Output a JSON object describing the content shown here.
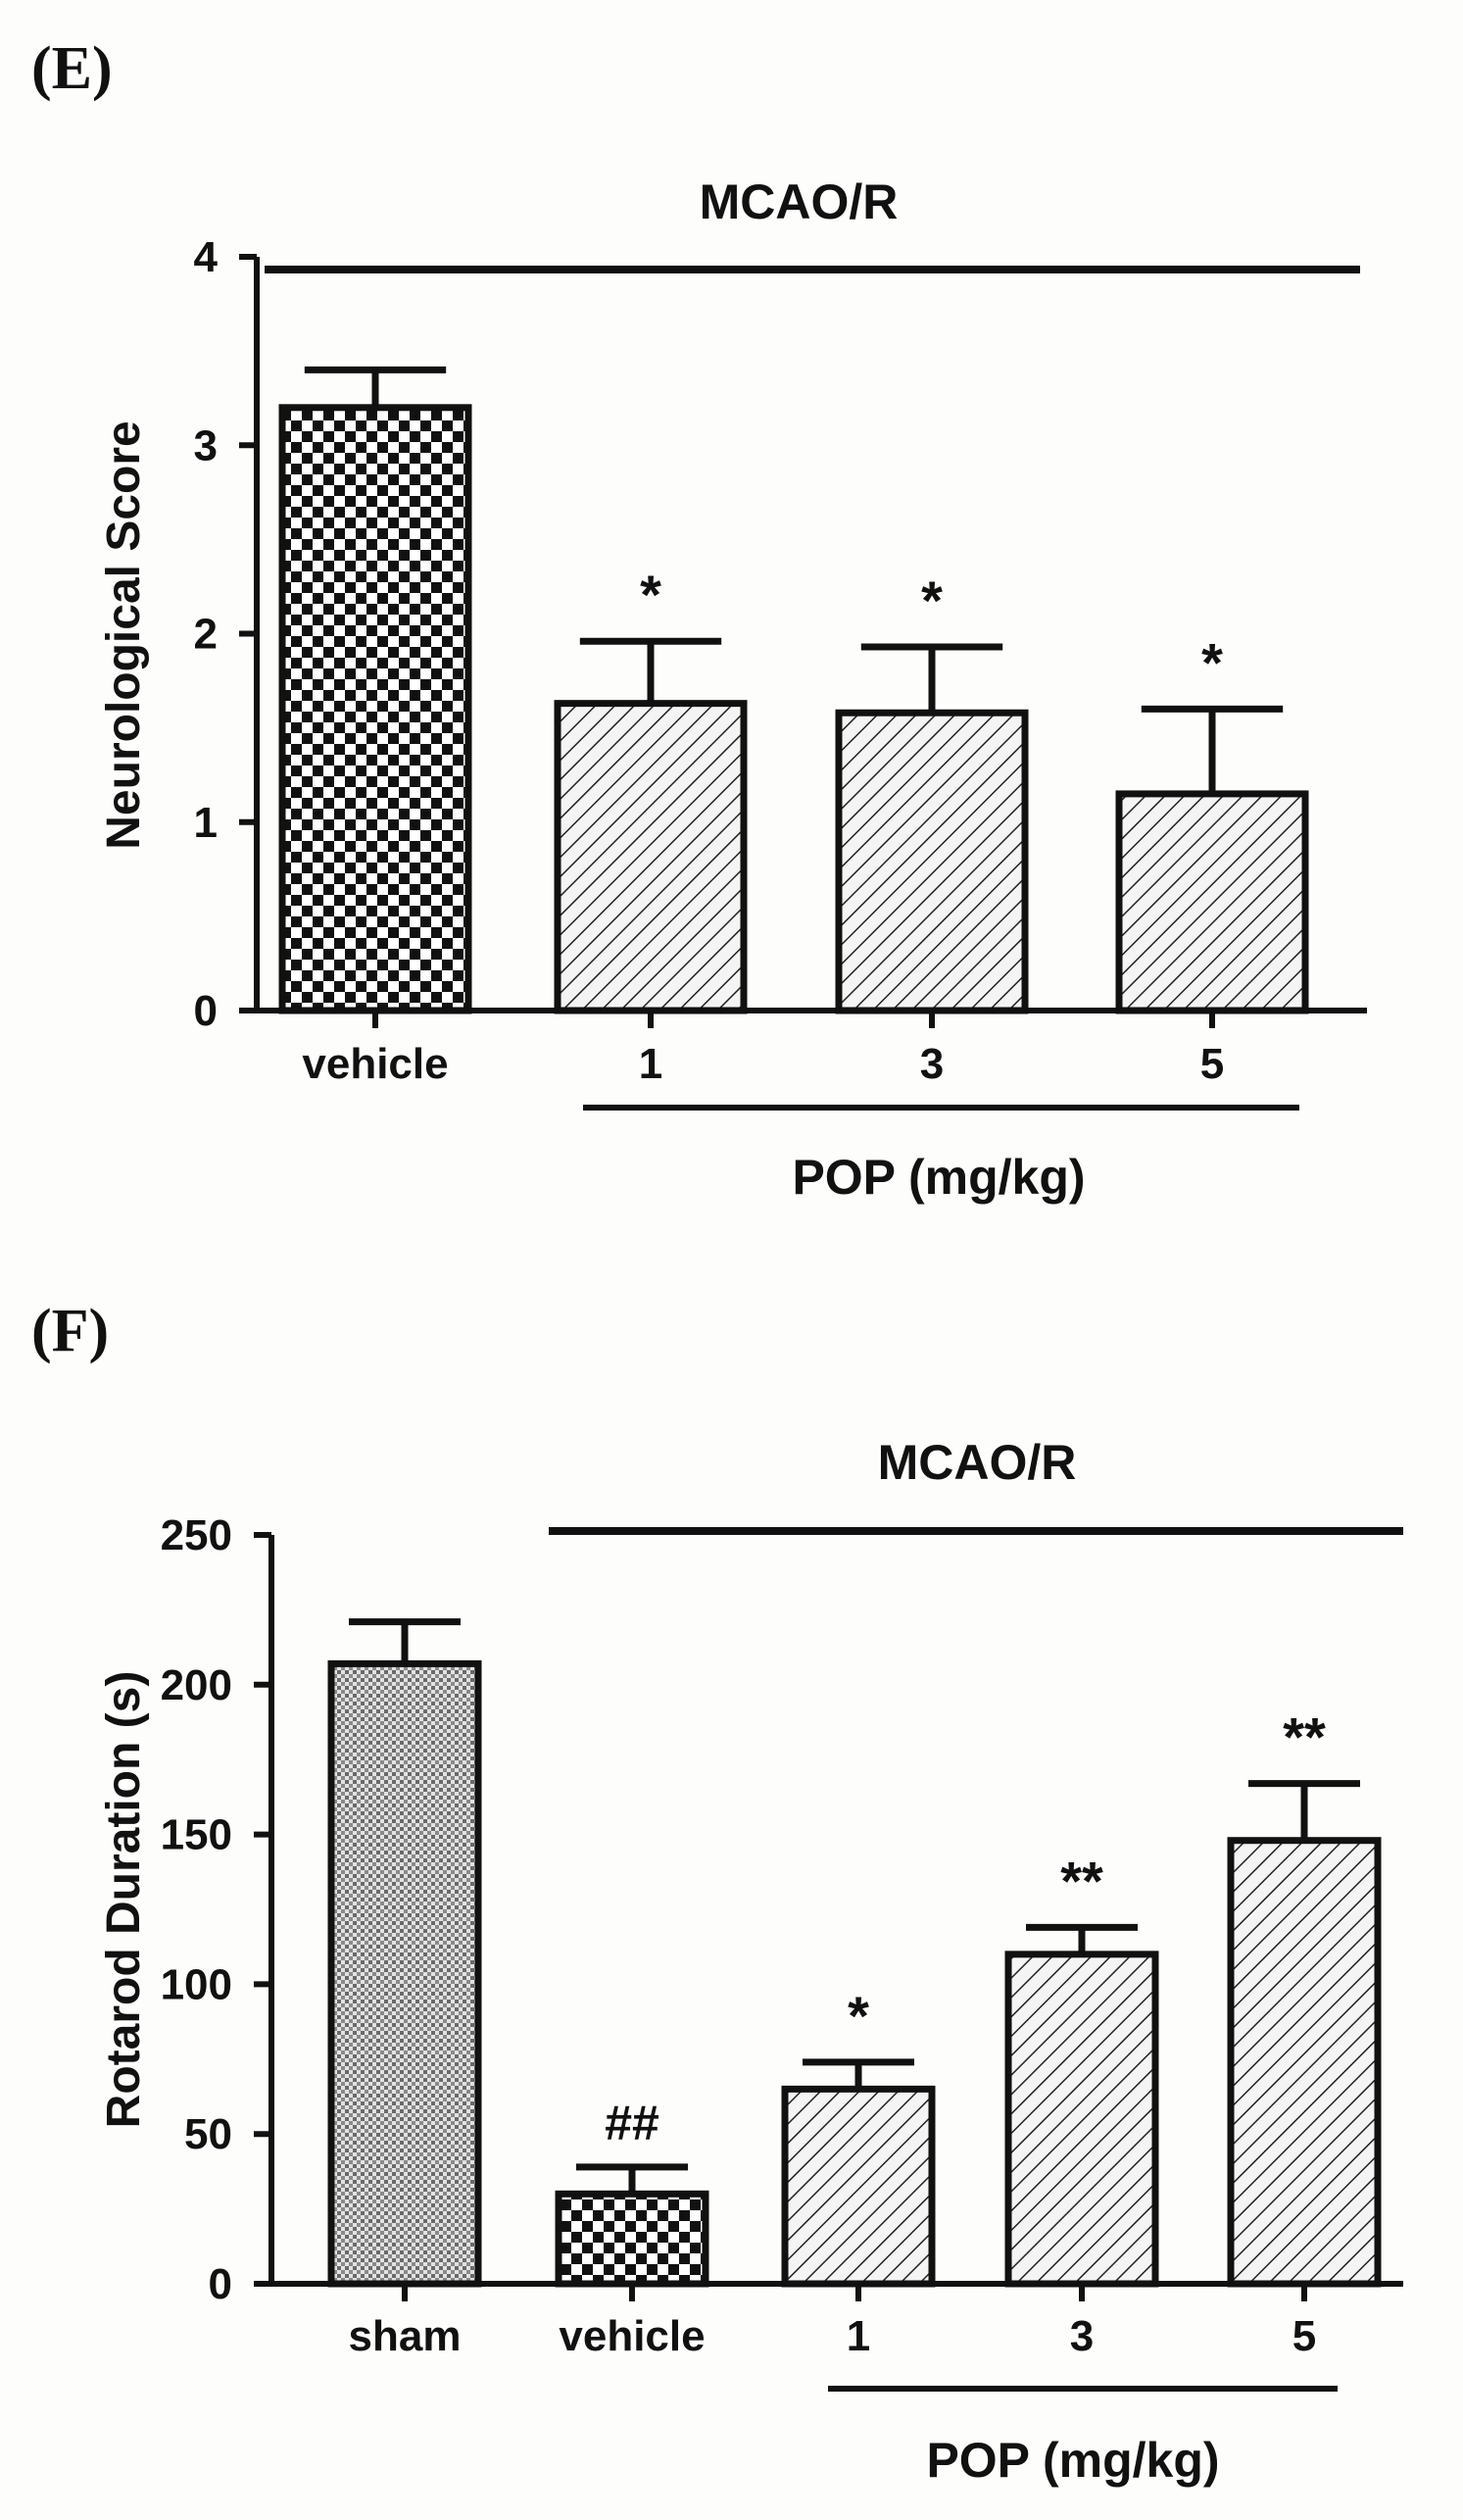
{
  "chart_data": [
    {
      "panel_label": "(E)",
      "type": "bar",
      "title": "MCAO/R",
      "ylabel": "Neurological Score",
      "ylim": [
        0,
        4
      ],
      "yticks": [
        "0",
        "1",
        "2",
        "3",
        "4"
      ],
      "categories": [
        "vehicle",
        "1",
        "3",
        "5"
      ],
      "values": [
        3.2,
        1.63,
        1.58,
        1.15
      ],
      "errors": [
        0.2,
        0.33,
        0.35,
        0.45
      ],
      "significance": [
        "",
        "*",
        "*",
        "*"
      ],
      "fills": [
        "checker",
        "hatch",
        "hatch",
        "hatch"
      ],
      "group_label": "POP (mg/kg)"
    },
    {
      "panel_label": "(F)",
      "type": "bar",
      "title": "MCAO/R",
      "ylabel": "Rotarod Duration (s)",
      "ylim": [
        0,
        250
      ],
      "yticks": [
        "0",
        "50",
        "100",
        "150",
        "200",
        "250"
      ],
      "categories": [
        "sham",
        "vehicle",
        "1",
        "3",
        "5"
      ],
      "values": [
        207,
        30,
        65,
        110,
        148
      ],
      "errors": [
        14,
        9,
        9,
        9,
        19
      ],
      "significance": [
        "",
        "##",
        "*",
        "**",
        "**"
      ],
      "fills": [
        "dots",
        "checker",
        "hatch",
        "hatch",
        "hatch"
      ],
      "group_label": "POP (mg/kg)"
    }
  ]
}
